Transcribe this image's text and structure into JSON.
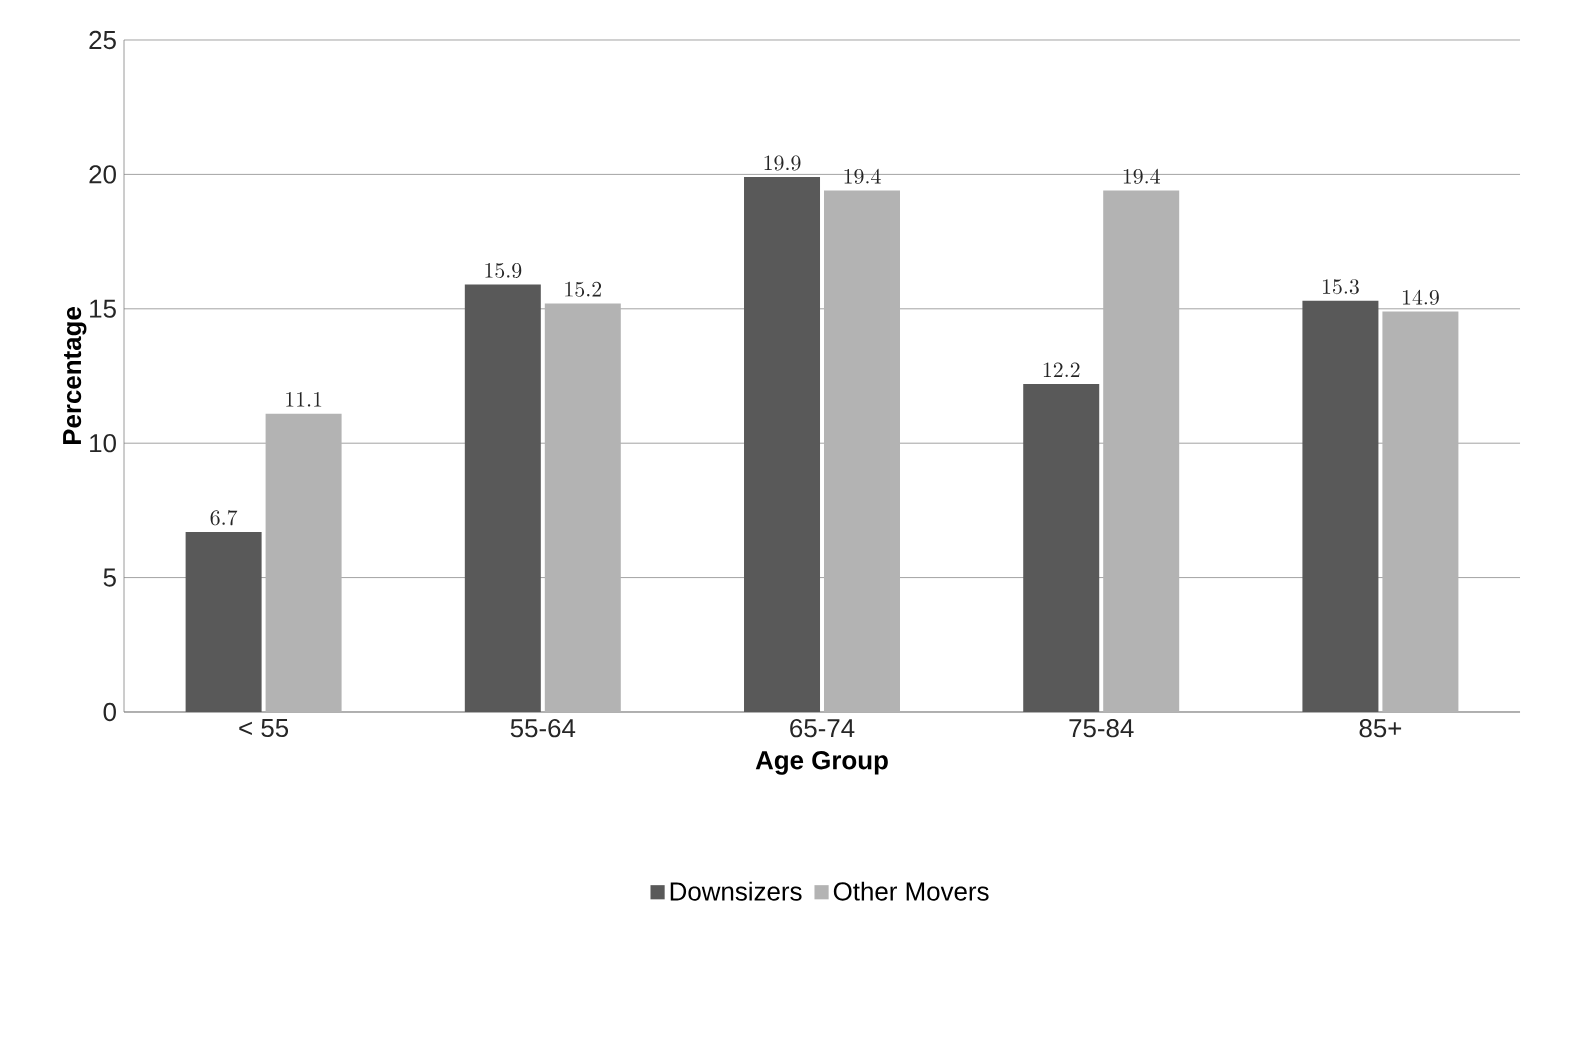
{
  "chart_data": {
    "type": "bar",
    "xlabel": "Age Group",
    "ylabel": "Percentage",
    "categories": [
      "< 55",
      "55-64",
      "65-74",
      "75-84",
      "85+"
    ],
    "series": [
      {
        "name": "Downsizers",
        "color": "#595959",
        "values": [
          6.7,
          15.9,
          19.9,
          12.2,
          15.3
        ]
      },
      {
        "name": "Other Movers",
        "color": "#b3b3b3",
        "values": [
          11.1,
          15.2,
          19.4,
          19.4,
          14.9
        ]
      }
    ],
    "ylim": [
      0,
      25
    ],
    "yticks": [
      0,
      5,
      10,
      15,
      20,
      25
    ],
    "grid": "y",
    "legend": "bottom",
    "data_labels": true
  }
}
